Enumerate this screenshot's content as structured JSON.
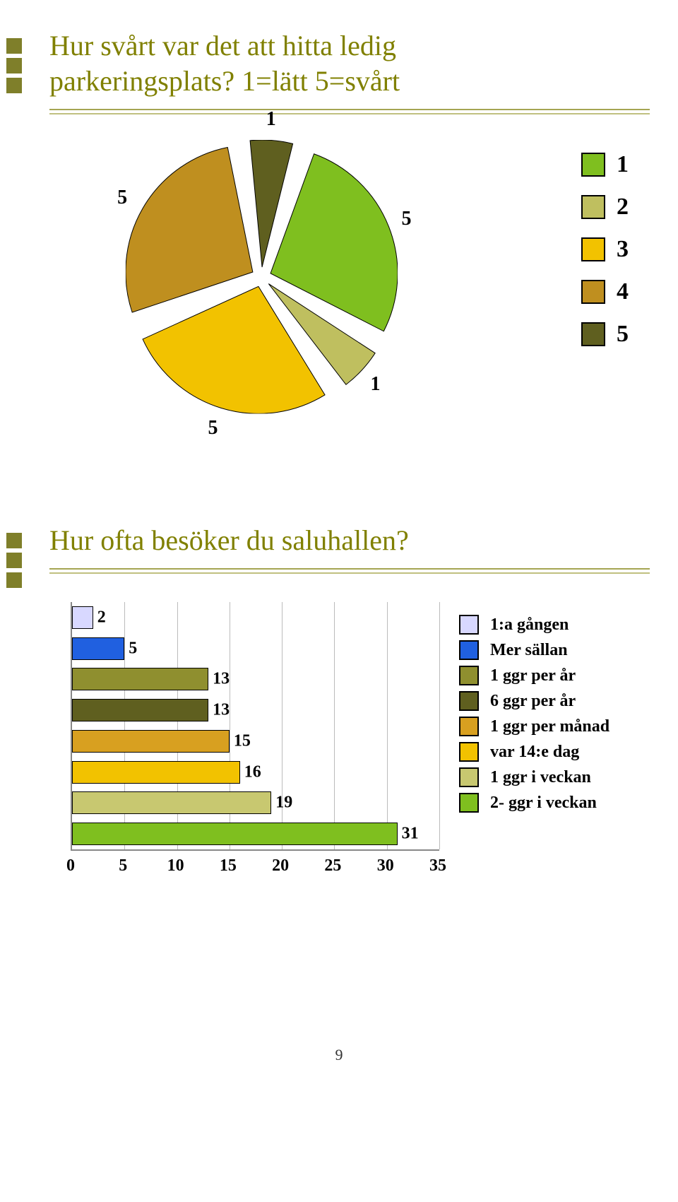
{
  "page_number": "9",
  "layout": {
    "sidebar_square_color": "#7f7f2a",
    "title_color": "#808000",
    "rule1_color": "#a5a552",
    "rule2_color": "#c0c080"
  },
  "pie_block": {
    "title_line1": "Hur svårt var det att hitta ledig",
    "title_line2": "parkeringsplats? 1=lätt 5=svårt",
    "pie": {
      "background_color": "#ffffff",
      "slices": [
        {
          "label": "1",
          "value": 5,
          "color": "#7fbf1f"
        },
        {
          "label": "2",
          "value": 1,
          "color": "#bfbf5f"
        },
        {
          "label": "3",
          "value": 5,
          "color": "#f2c200"
        },
        {
          "label": "4",
          "value": 5,
          "color": "#bf8f1f"
        },
        {
          "label": "5",
          "value": 1,
          "color": "#5f5f1f"
        }
      ],
      "gap_deg": 6,
      "slice_outline": "#000000",
      "slice_label_fontsize": 28
    },
    "legend": [
      {
        "label": "1",
        "color": "#7fbf1f"
      },
      {
        "label": "2",
        "color": "#bfbf5f"
      },
      {
        "label": "3",
        "color": "#f2c200"
      },
      {
        "label": "4",
        "color": "#bf8f1f"
      },
      {
        "label": "5",
        "color": "#5f5f1f"
      }
    ]
  },
  "bar_block": {
    "title": "Hur ofta besöker du saluhallen?",
    "xmin": 0,
    "xmax": 35,
    "xtick_step": 5,
    "xticks": [
      0,
      5,
      10,
      15,
      20,
      25,
      30,
      35
    ],
    "grid_color": "#bbbbbb",
    "axis_color": "#888888",
    "bars": [
      {
        "label": "1:a gången",
        "value": 2,
        "color": "#d8d8ff"
      },
      {
        "label": "Mer sällan",
        "value": 5,
        "color": "#2060e0"
      },
      {
        "label": "1 ggr per år",
        "value": 13,
        "color": "#8f8f2f"
      },
      {
        "label": "6 ggr per år",
        "value": 13,
        "color": "#5f5f1f"
      },
      {
        "label": "1 ggr per månad",
        "value": 15,
        "color": "#d8a020"
      },
      {
        "label": "var 14:e dag",
        "value": 16,
        "color": "#f2c200"
      },
      {
        "label": "1 ggr i veckan",
        "value": 19,
        "color": "#c8c870"
      },
      {
        "label": "2- ggr i veckan",
        "value": 31,
        "color": "#7fbf1f"
      }
    ],
    "bar_value_fontsize": 24,
    "legend_fontsize": 24
  }
}
